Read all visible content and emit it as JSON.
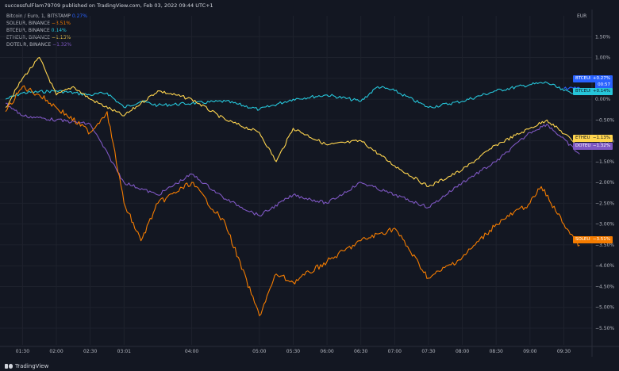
{
  "header": {
    "title": "successfulFlam79709 published on TradingView.com, Feb 03, 2022 09:44 UTC+1"
  },
  "legend": [
    {
      "name": "Bitcoin / Euro, 1, BITSTAMP",
      "value": "0.27%",
      "color": "#2962ff"
    },
    {
      "name": "SOLEUR, BINANCE",
      "value": "−3.51%",
      "color": "#f57c00"
    },
    {
      "name": "BTCEUR, BINANCE",
      "value": "0.14%",
      "color": "#26c6da"
    },
    {
      "name": "ETHEUR, BINANCE",
      "value": "−1.13%",
      "color": "#ffd54f"
    },
    {
      "name": "DOTEUR, BINANCE",
      "value": "−1.32%",
      "color": "#7e57c2"
    }
  ],
  "badges": {
    "main_name": "BTCEUR",
    "main_value": "+0.27%",
    "main_timer": "00:57",
    "btc_name": "BTCEUR",
    "btc_value": "+0.14%",
    "eth_name": "ETHEUR",
    "eth_value": "−1.13%",
    "dot_name": "DOTEUR",
    "dot_value": "−1.32%",
    "sol_name": "SOLEUR",
    "sol_value": "−3.51%"
  },
  "watermark": {
    "text": "TradingView"
  },
  "chart_data": {
    "type": "line",
    "currency_label": "EUR",
    "ylim": [
      -5.9,
      2.0
    ],
    "x_tick_labels": [
      "01:30",
      "02:00",
      "02:30",
      "03:01",
      "04:00",
      "05:00",
      "05:30",
      "06:00",
      "06:30",
      "07:00",
      "07:30",
      "08:00",
      "08:30",
      "09:00",
      "09:30"
    ],
    "y_tick_labels": [
      "1.50%",
      "1.00%",
      "0.50%",
      "0.00%",
      "-0.50%",
      "-1.00%",
      "-1.50%",
      "-2.00%",
      "-2.50%",
      "-3.00%",
      "-3.50%",
      "-4.00%",
      "-4.50%",
      "-5.00%",
      "-5.50%"
    ],
    "series": [
      {
        "name": "BTCEUR",
        "color": "#26c6da",
        "points": [
          [
            "01:15",
            0.0
          ],
          [
            "01:30",
            0.15
          ],
          [
            "02:00",
            0.2
          ],
          [
            "02:30",
            0.1
          ],
          [
            "02:45",
            0.15
          ],
          [
            "03:00",
            -0.2
          ],
          [
            "03:15",
            -0.05
          ],
          [
            "03:30",
            -0.15
          ],
          [
            "04:00",
            -0.1
          ],
          [
            "04:30",
            -0.05
          ],
          [
            "05:00",
            -0.25
          ],
          [
            "05:30",
            0.0
          ],
          [
            "06:00",
            0.1
          ],
          [
            "06:30",
            -0.05
          ],
          [
            "06:45",
            0.3
          ],
          [
            "07:00",
            0.2
          ],
          [
            "07:30",
            -0.2
          ],
          [
            "08:00",
            -0.05
          ],
          [
            "08:30",
            0.2
          ],
          [
            "09:00",
            0.35
          ],
          [
            "09:15",
            0.4
          ],
          [
            "09:30",
            0.2
          ],
          [
            "09:44",
            0.14
          ]
        ]
      },
      {
        "name": "ETHEUR",
        "color": "#ffd54f",
        "points": [
          [
            "01:15",
            -0.2
          ],
          [
            "01:30",
            0.5
          ],
          [
            "01:45",
            1.0
          ],
          [
            "02:00",
            0.1
          ],
          [
            "02:15",
            0.3
          ],
          [
            "02:30",
            0.0
          ],
          [
            "03:00",
            -0.4
          ],
          [
            "03:15",
            -0.1
          ],
          [
            "03:30",
            0.2
          ],
          [
            "04:00",
            0.0
          ],
          [
            "04:30",
            -0.5
          ],
          [
            "05:00",
            -0.8
          ],
          [
            "05:15",
            -1.5
          ],
          [
            "05:30",
            -0.7
          ],
          [
            "06:00",
            -1.1
          ],
          [
            "06:30",
            -1.0
          ],
          [
            "07:00",
            -1.6
          ],
          [
            "07:30",
            -2.1
          ],
          [
            "08:00",
            -1.7
          ],
          [
            "08:30",
            -1.1
          ],
          [
            "09:00",
            -0.7
          ],
          [
            "09:15",
            -0.5
          ],
          [
            "09:44",
            -1.13
          ]
        ]
      },
      {
        "name": "DOTEUR",
        "color": "#7e57c2",
        "points": [
          [
            "01:15",
            -0.1
          ],
          [
            "01:30",
            -0.4
          ],
          [
            "02:00",
            -0.5
          ],
          [
            "02:30",
            -0.6
          ],
          [
            "03:00",
            -2.0
          ],
          [
            "03:30",
            -2.3
          ],
          [
            "04:00",
            -1.8
          ],
          [
            "04:30",
            -2.4
          ],
          [
            "05:00",
            -2.8
          ],
          [
            "05:30",
            -2.3
          ],
          [
            "06:00",
            -2.5
          ],
          [
            "06:30",
            -2.0
          ],
          [
            "07:00",
            -2.3
          ],
          [
            "07:30",
            -2.6
          ],
          [
            "08:00",
            -2.0
          ],
          [
            "08:30",
            -1.5
          ],
          [
            "09:00",
            -0.8
          ],
          [
            "09:15",
            -0.6
          ],
          [
            "09:44",
            -1.32
          ]
        ]
      },
      {
        "name": "SOLEUR",
        "color": "#f57c00",
        "points": [
          [
            "01:15",
            -0.3
          ],
          [
            "01:30",
            0.3
          ],
          [
            "01:45",
            0.1
          ],
          [
            "02:00",
            -0.2
          ],
          [
            "02:30",
            -0.8
          ],
          [
            "02:45",
            -0.3
          ],
          [
            "03:00",
            -2.5
          ],
          [
            "03:15",
            -3.4
          ],
          [
            "03:30",
            -2.5
          ],
          [
            "04:00",
            -2.0
          ],
          [
            "04:30",
            -3.0
          ],
          [
            "05:00",
            -5.2
          ],
          [
            "05:15",
            -4.2
          ],
          [
            "05:30",
            -4.4
          ],
          [
            "06:00",
            -3.9
          ],
          [
            "06:30",
            -3.4
          ],
          [
            "07:00",
            -3.1
          ],
          [
            "07:30",
            -4.3
          ],
          [
            "08:00",
            -3.8
          ],
          [
            "08:30",
            -3.0
          ],
          [
            "09:00",
            -2.5
          ],
          [
            "09:10",
            -2.1
          ],
          [
            "09:30",
            -3.0
          ],
          [
            "09:44",
            -3.51
          ]
        ]
      },
      {
        "name": "Bitcoin / Euro",
        "color": "#2962ff",
        "points": [
          [
            "09:30",
            0.25
          ],
          [
            "09:44",
            0.27
          ]
        ]
      }
    ]
  }
}
